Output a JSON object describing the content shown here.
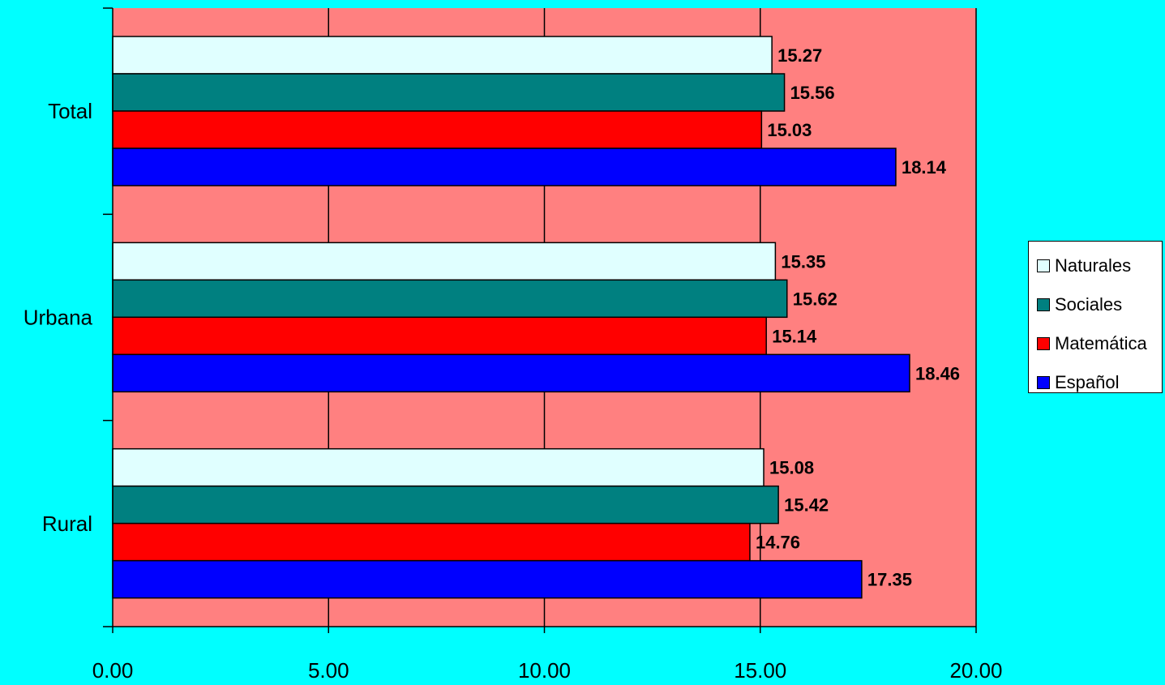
{
  "chart_data": {
    "type": "bar",
    "orientation": "horizontal",
    "categories": [
      "Total",
      "Urbana",
      "Rural"
    ],
    "series": [
      {
        "name": "Naturales",
        "color": "#E0FFFF",
        "values": [
          15.27,
          15.35,
          15.08
        ]
      },
      {
        "name": "Sociales",
        "color": "#008080",
        "values": [
          15.56,
          15.62,
          15.42
        ]
      },
      {
        "name": "Matemática",
        "color": "#FF0000",
        "values": [
          15.03,
          15.14,
          14.76
        ]
      },
      {
        "name": "Español",
        "color": "#0000FF",
        "values": [
          18.14,
          18.46,
          17.35
        ]
      }
    ],
    "value_labels": {
      "Total": [
        "15.27",
        "15.56",
        "15.03",
        "18.14"
      ],
      "Urbana": [
        "15.35",
        "15.62",
        "15.14",
        "18.46"
      ],
      "Rural": [
        "15.08",
        "15.42",
        "14.76",
        "17.35"
      ]
    },
    "x_ticks": [
      "0.00",
      "5.00",
      "10.00",
      "15.00",
      "20.00"
    ],
    "xlim": [
      0,
      20
    ],
    "title": "",
    "xlabel": "",
    "ylabel": "",
    "grid": "vertical",
    "legend_position": "right",
    "colors": {
      "background": "#00FFFF",
      "plot_area": "#FF8080",
      "gridline": "#000000"
    }
  }
}
